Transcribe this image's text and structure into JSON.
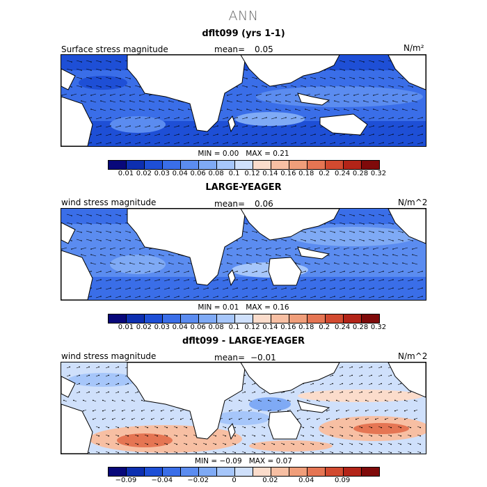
{
  "page": {
    "title": "ANN"
  },
  "panels": [
    {
      "title": "dflt099 (yrs 1-1)",
      "variable": "Surface stress magnitude",
      "mean_label": "mean=",
      "mean_value": "0.05",
      "units": "N/m²",
      "min_label": "MIN =",
      "min_value": "0.00",
      "max_label": "MAX =",
      "max_value": "0.21",
      "colorbar_ticks": [
        "0.01",
        "0.02",
        "0.03",
        "0.04",
        "0.06",
        "0.08",
        "0.1",
        "0.12",
        "0.14",
        "0.16",
        "0.18",
        "0.2",
        "0.24",
        "0.28",
        "0.32"
      ]
    },
    {
      "title": "LARGE-YEAGER",
      "variable": "wind stress magnitude",
      "mean_label": "mean=",
      "mean_value": "0.06",
      "units": "N/m^2",
      "min_label": "MIN =",
      "min_value": "0.01",
      "max_label": "MAX =",
      "max_value": "0.16",
      "colorbar_ticks": [
        "0.01",
        "0.02",
        "0.03",
        "0.04",
        "0.06",
        "0.08",
        "0.1",
        "0.12",
        "0.14",
        "0.16",
        "0.18",
        "0.2",
        "0.24",
        "0.28",
        "0.32"
      ]
    },
    {
      "title": "dflt099 - LARGE-YEAGER",
      "variable": "wind stress magnitude",
      "mean_label": "mean=",
      "mean_value": "−0.01",
      "units": "N/m^2",
      "min_label": "MIN =",
      "min_value": "−0.09",
      "max_label": "MAX =",
      "max_value": "0.07",
      "colorbar_ticks": [
        "−0.09",
        "−0.04",
        "−0.02",
        "0",
        "0.02",
        "0.04",
        "0.09"
      ]
    }
  ],
  "colors": {
    "sequential": [
      "#08087a",
      "#0d2fb0",
      "#1e4fd6",
      "#3a6ee8",
      "#5b8cf0",
      "#7faaf5",
      "#a6c6fa",
      "#cfe0fb",
      "#fbdccb",
      "#f7bfa3",
      "#f09e7a",
      "#e57553",
      "#d24a30",
      "#b32418",
      "#7f0a0a"
    ],
    "land": "#ffffff"
  }
}
